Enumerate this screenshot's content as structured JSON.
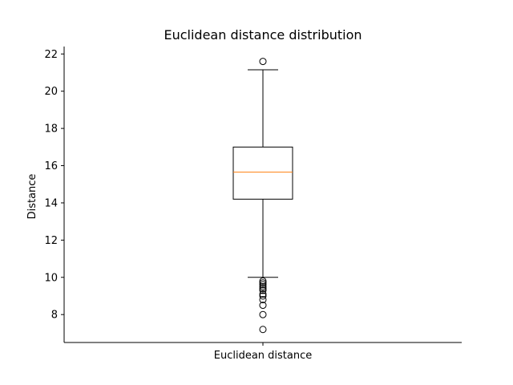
{
  "chart_data": {
    "type": "box",
    "title": "Euclidean distance distribution",
    "xlabel": "",
    "ylabel": "Distance",
    "categories": [
      "Euclidean distance"
    ],
    "ylim": [
      6.5,
      22.4
    ],
    "yticks": [
      8,
      10,
      12,
      14,
      16,
      18,
      20,
      22
    ],
    "grid": false,
    "box": {
      "q1": 14.2,
      "median": 15.65,
      "q3": 17.0,
      "whisker_low": 10.0,
      "whisker_high": 21.15,
      "outliers": [
        21.6,
        9.8,
        9.7,
        9.6,
        9.5,
        9.4,
        9.3,
        9.1,
        9.0,
        8.8,
        8.5,
        8.0,
        7.2
      ]
    },
    "colors": {
      "box": "#000000",
      "median": "#ff7f0e",
      "whisker": "#000000",
      "outlier": "#000000"
    }
  }
}
